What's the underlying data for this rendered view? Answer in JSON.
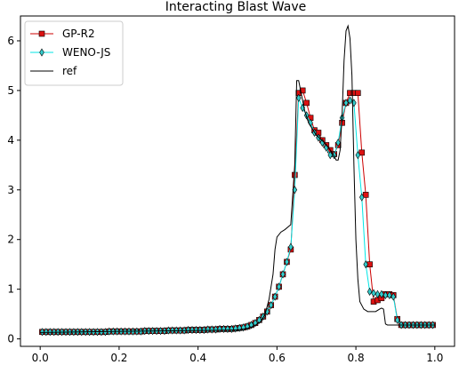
{
  "chart_data": {
    "type": "line",
    "title": "Interacting Blast Wave",
    "xlabel": "",
    "ylabel": "",
    "xlim": [
      -0.05,
      1.05
    ],
    "ylim": [
      -0.15,
      6.5
    ],
    "xticks": [
      0.0,
      0.2,
      0.4,
      0.6,
      0.8,
      1.0
    ],
    "xtick_labels": [
      "0.0",
      "0.2",
      "0.4",
      "0.6",
      "0.8",
      "1.0"
    ],
    "yticks": [
      0,
      1,
      2,
      3,
      4,
      5,
      6
    ],
    "ytick_labels": [
      "0",
      "1",
      "2",
      "3",
      "4",
      "5",
      "6"
    ],
    "grid": false,
    "legend_position": "top-left",
    "series": [
      {
        "name": "GP-R2",
        "color": "#cc0000",
        "marker": "square",
        "marker_color": "#dd1111",
        "x": [
          0.005,
          0.015,
          0.025,
          0.035,
          0.045,
          0.055,
          0.065,
          0.075,
          0.085,
          0.095,
          0.105,
          0.115,
          0.125,
          0.135,
          0.145,
          0.155,
          0.165,
          0.175,
          0.185,
          0.195,
          0.205,
          0.215,
          0.225,
          0.235,
          0.245,
          0.255,
          0.265,
          0.275,
          0.285,
          0.295,
          0.305,
          0.315,
          0.325,
          0.335,
          0.345,
          0.355,
          0.365,
          0.375,
          0.385,
          0.395,
          0.405,
          0.415,
          0.425,
          0.435,
          0.445,
          0.455,
          0.465,
          0.475,
          0.485,
          0.495,
          0.505,
          0.515,
          0.525,
          0.535,
          0.545,
          0.555,
          0.565,
          0.575,
          0.585,
          0.595,
          0.605,
          0.615,
          0.625,
          0.635,
          0.645,
          0.655,
          0.665,
          0.675,
          0.685,
          0.695,
          0.705,
          0.715,
          0.725,
          0.735,
          0.745,
          0.755,
          0.765,
          0.775,
          0.785,
          0.795,
          0.805,
          0.815,
          0.825,
          0.835,
          0.845,
          0.855,
          0.865,
          0.875,
          0.885,
          0.895,
          0.905,
          0.915,
          0.925,
          0.935,
          0.945,
          0.955,
          0.965,
          0.975,
          0.985,
          0.995
        ],
        "y": [
          0.14,
          0.14,
          0.14,
          0.14,
          0.14,
          0.14,
          0.14,
          0.14,
          0.14,
          0.14,
          0.14,
          0.14,
          0.14,
          0.14,
          0.14,
          0.14,
          0.14,
          0.15,
          0.15,
          0.15,
          0.15,
          0.15,
          0.15,
          0.15,
          0.15,
          0.15,
          0.16,
          0.16,
          0.16,
          0.16,
          0.16,
          0.16,
          0.17,
          0.17,
          0.17,
          0.17,
          0.17,
          0.18,
          0.18,
          0.18,
          0.18,
          0.18,
          0.19,
          0.19,
          0.19,
          0.2,
          0.2,
          0.2,
          0.2,
          0.21,
          0.22,
          0.23,
          0.25,
          0.28,
          0.32,
          0.38,
          0.45,
          0.55,
          0.68,
          0.85,
          1.05,
          1.3,
          1.55,
          1.8,
          3.3,
          4.95,
          5.0,
          4.75,
          4.45,
          4.2,
          4.15,
          4.0,
          3.9,
          3.8,
          3.72,
          3.9,
          4.35,
          4.75,
          4.95,
          4.95,
          4.95,
          3.75,
          2.9,
          1.5,
          0.75,
          0.78,
          0.82,
          0.9,
          0.9,
          0.88,
          0.4,
          0.28,
          0.28,
          0.28,
          0.28,
          0.28,
          0.28,
          0.28,
          0.28,
          0.28
        ]
      },
      {
        "name": "WENO-JS",
        "color": "#00e5e5",
        "marker": "diamond",
        "marker_color": "#33cccc",
        "x": [
          0.005,
          0.015,
          0.025,
          0.035,
          0.045,
          0.055,
          0.065,
          0.075,
          0.085,
          0.095,
          0.105,
          0.115,
          0.125,
          0.135,
          0.145,
          0.155,
          0.165,
          0.175,
          0.185,
          0.195,
          0.205,
          0.215,
          0.225,
          0.235,
          0.245,
          0.255,
          0.265,
          0.275,
          0.285,
          0.295,
          0.305,
          0.315,
          0.325,
          0.335,
          0.345,
          0.355,
          0.365,
          0.375,
          0.385,
          0.395,
          0.405,
          0.415,
          0.425,
          0.435,
          0.445,
          0.455,
          0.465,
          0.475,
          0.485,
          0.495,
          0.505,
          0.515,
          0.525,
          0.535,
          0.545,
          0.555,
          0.565,
          0.575,
          0.585,
          0.595,
          0.605,
          0.615,
          0.625,
          0.635,
          0.645,
          0.655,
          0.665,
          0.675,
          0.685,
          0.695,
          0.705,
          0.715,
          0.725,
          0.735,
          0.745,
          0.755,
          0.765,
          0.775,
          0.785,
          0.795,
          0.805,
          0.815,
          0.825,
          0.835,
          0.845,
          0.855,
          0.865,
          0.875,
          0.885,
          0.895,
          0.905,
          0.915,
          0.925,
          0.935,
          0.945,
          0.955,
          0.965,
          0.975,
          0.985,
          0.995
        ],
        "y": [
          0.14,
          0.14,
          0.14,
          0.14,
          0.14,
          0.14,
          0.14,
          0.14,
          0.14,
          0.14,
          0.14,
          0.14,
          0.14,
          0.14,
          0.14,
          0.14,
          0.14,
          0.15,
          0.15,
          0.15,
          0.15,
          0.15,
          0.15,
          0.15,
          0.15,
          0.15,
          0.16,
          0.16,
          0.16,
          0.16,
          0.16,
          0.16,
          0.17,
          0.17,
          0.17,
          0.17,
          0.17,
          0.18,
          0.18,
          0.18,
          0.18,
          0.18,
          0.19,
          0.19,
          0.19,
          0.2,
          0.2,
          0.2,
          0.2,
          0.21,
          0.22,
          0.23,
          0.25,
          0.28,
          0.32,
          0.38,
          0.45,
          0.55,
          0.68,
          0.85,
          1.05,
          1.3,
          1.55,
          1.85,
          3.0,
          4.85,
          4.65,
          4.5,
          4.35,
          4.15,
          4.05,
          3.95,
          3.85,
          3.7,
          3.7,
          3.95,
          4.45,
          4.75,
          4.8,
          4.75,
          3.7,
          2.85,
          1.5,
          0.95,
          0.92,
          0.9,
          0.9,
          0.88,
          0.88,
          0.85,
          0.38,
          0.28,
          0.28,
          0.28,
          0.28,
          0.28,
          0.28,
          0.28,
          0.28,
          0.28
        ]
      },
      {
        "name": "ref",
        "color": "#000000",
        "marker": "none",
        "x": [
          0.0,
          0.5,
          0.52,
          0.54,
          0.56,
          0.57,
          0.58,
          0.59,
          0.595,
          0.6,
          0.61,
          0.62,
          0.635,
          0.645,
          0.65,
          0.655,
          0.66,
          0.665,
          0.67,
          0.68,
          0.7,
          0.72,
          0.74,
          0.75,
          0.755,
          0.76,
          0.765,
          0.77,
          0.775,
          0.78,
          0.785,
          0.79,
          0.795,
          0.8,
          0.805,
          0.81,
          0.82,
          0.83,
          0.84,
          0.85,
          0.86,
          0.865,
          0.87,
          0.875,
          0.88,
          1.0
        ],
        "y": [
          0.13,
          0.18,
          0.2,
          0.25,
          0.35,
          0.5,
          0.8,
          1.3,
          1.8,
          2.05,
          2.15,
          2.2,
          2.3,
          3.5,
          5.2,
          5.2,
          5.0,
          4.8,
          4.6,
          4.35,
          4.1,
          3.95,
          3.75,
          3.6,
          3.6,
          3.8,
          4.5,
          5.6,
          6.2,
          6.3,
          6.05,
          5.3,
          3.5,
          2.0,
          1.2,
          0.75,
          0.6,
          0.55,
          0.55,
          0.55,
          0.6,
          0.62,
          0.6,
          0.3,
          0.28,
          0.28
        ]
      }
    ]
  }
}
